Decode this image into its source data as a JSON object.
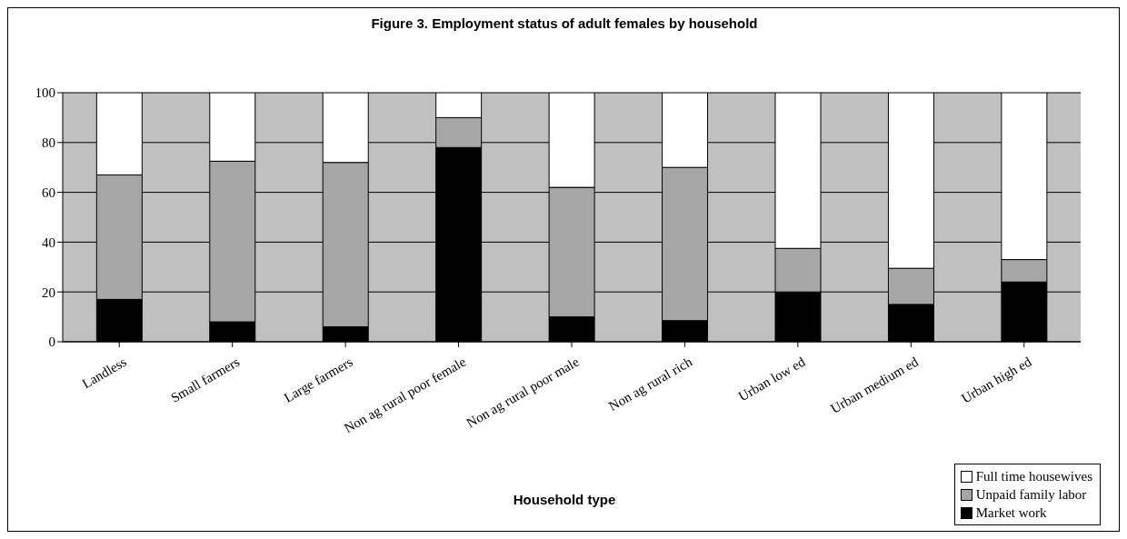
{
  "chart_data": {
    "type": "bar",
    "title": "Figure 3. Employment status of adult females by household",
    "xlabel": "Household type",
    "categories": [
      "Landless",
      "Small farmers",
      "Large farmers",
      "Non ag rural poor female",
      "Non ag rural poor male",
      "Non ag rural rich",
      "Urban low ed",
      "Urban medium ed",
      "Urban high ed"
    ],
    "stacked": true,
    "series": [
      {
        "name": "Market work",
        "color": "#000000",
        "values": [
          17,
          8,
          6,
          78,
          10,
          8.5,
          20,
          15,
          24
        ]
      },
      {
        "name": "Unpaid family labor",
        "color": "#a6a6a6",
        "values": [
          50,
          64.5,
          66,
          12,
          52,
          61.5,
          17.5,
          14.5,
          9
        ]
      },
      {
        "name": "Full time housewives",
        "color": "#ffffff",
        "values": [
          33,
          27.5,
          28,
          10,
          38,
          30,
          62.5,
          70.5,
          67
        ]
      }
    ],
    "ylim": [
      0,
      100
    ],
    "yticks": [
      0,
      20,
      40,
      60,
      80,
      100
    ],
    "grid": "y",
    "legend": "bottom right"
  }
}
